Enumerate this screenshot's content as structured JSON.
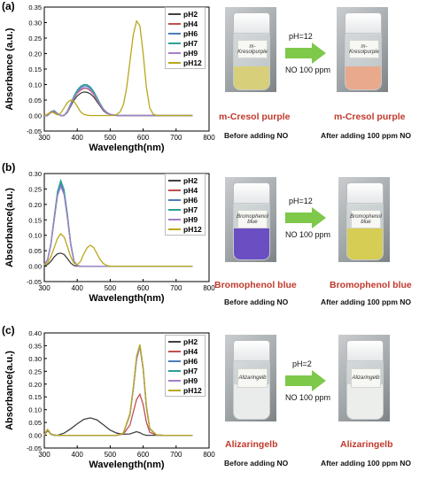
{
  "series_names": [
    "pH2",
    "pH4",
    "pH6",
    "pH7",
    "pH9",
    "pH12"
  ],
  "series_colors": [
    "#404040",
    "#c0504d",
    "#4a7ebb",
    "#2aa198",
    "#a57fc9",
    "#b8a81c"
  ],
  "panels": [
    {
      "label": "(a)",
      "dye": "m-Cresol purple",
      "ph": "pH=12",
      "no": "NO 100 ppm",
      "before_caption": "Before adding NO",
      "after_caption": "After adding  100 ppm NO",
      "before_liquid": "#d8cf7a",
      "after_liquid": "#e9a98c",
      "vial_label": "m-Kresolpurple"
    },
    {
      "label": "(b)",
      "dye": "Bromophenol blue",
      "ph": "pH=12",
      "no": "NO 100 ppm",
      "before_caption": "Before adding NO",
      "after_caption": "After adding  100 ppm NO",
      "before_liquid": "#6a4fc2",
      "after_liquid": "#d6cd55",
      "vial_label": "Bromophenol blue"
    },
    {
      "label": "(c)",
      "dye": "Alizaringelb",
      "ph": "pH=2",
      "no": "NO 100 ppm",
      "before_caption": "Before adding NO",
      "after_caption": "After adding  100 ppm NO",
      "before_liquid": "#e9eceb",
      "after_liquid": "#eceeec",
      "vial_label": "Alizaringelb"
    }
  ],
  "chart_data": [
    {
      "type": "line",
      "xlabel": "Wavelength(nm)",
      "ylabel": "Absorbance (a.u.)",
      "xlim": [
        300,
        800
      ],
      "ylim": [
        -0.05,
        0.35
      ],
      "xticks": [
        300,
        400,
        500,
        600,
        700,
        800
      ],
      "yticks": [
        -0.05,
        0.0,
        0.05,
        0.1,
        0.15,
        0.2,
        0.25,
        0.3,
        0.35
      ],
      "ytick_labels": [
        "-0.05",
        "0.00",
        "0.05",
        "0.10",
        "0.15",
        "0.20",
        "0.25",
        "0.30",
        "0.35"
      ],
      "x": [
        300,
        310,
        320,
        330,
        340,
        350,
        360,
        370,
        380,
        390,
        400,
        410,
        420,
        430,
        440,
        450,
        460,
        470,
        480,
        490,
        500,
        510,
        520,
        530,
        540,
        550,
        560,
        570,
        580,
        590,
        600,
        610,
        620,
        630,
        640,
        650,
        700,
        750
      ],
      "series": [
        {
          "name": "pH2",
          "values": [
            0.0,
            0.0,
            0.01,
            0.012,
            0.005,
            0.0,
            0.0,
            0.01,
            0.03,
            0.05,
            0.063,
            0.072,
            0.076,
            0.075,
            0.07,
            0.06,
            0.045,
            0.03,
            0.015,
            0.007,
            0.003,
            0.001,
            0.0,
            0.0,
            0.0,
            0.0,
            0.0,
            0.0,
            0.0,
            0.0,
            0.0,
            0.0,
            0.0,
            0.0,
            0.0,
            0.0,
            0.0,
            0.0
          ]
        },
        {
          "name": "pH4",
          "values": [
            0.0,
            0.0,
            0.012,
            0.014,
            0.006,
            0.0,
            0.0,
            0.012,
            0.034,
            0.056,
            0.072,
            0.082,
            0.088,
            0.087,
            0.08,
            0.068,
            0.05,
            0.033,
            0.017,
            0.008,
            0.003,
            0.001,
            0.0,
            0.0,
            0.0,
            0.0,
            0.0,
            0.0,
            0.0,
            0.0,
            0.0,
            0.0,
            0.0,
            0.0,
            0.0,
            0.0,
            0.0,
            0.0
          ]
        },
        {
          "name": "pH6",
          "values": [
            0.0,
            0.0,
            0.012,
            0.015,
            0.006,
            0.0,
            0.0,
            0.013,
            0.036,
            0.06,
            0.078,
            0.09,
            0.096,
            0.095,
            0.088,
            0.075,
            0.055,
            0.036,
            0.019,
            0.009,
            0.004,
            0.002,
            0.0,
            0.0,
            0.0,
            0.0,
            0.0,
            0.0,
            0.0,
            0.0,
            0.0,
            0.0,
            0.0,
            0.0,
            0.0,
            0.0,
            0.0,
            0.0
          ]
        },
        {
          "name": "pH7",
          "values": [
            0.0,
            0.0,
            0.013,
            0.016,
            0.007,
            0.0,
            0.0,
            0.014,
            0.038,
            0.063,
            0.082,
            0.094,
            0.1,
            0.099,
            0.092,
            0.078,
            0.058,
            0.038,
            0.02,
            0.01,
            0.004,
            0.002,
            0.0,
            0.0,
            0.0,
            0.0,
            0.0,
            0.0,
            0.0,
            0.0,
            0.0,
            0.0,
            0.0,
            0.0,
            0.0,
            0.0,
            0.0,
            0.0
          ]
        },
        {
          "name": "pH9",
          "values": [
            0.0,
            0.0,
            0.012,
            0.014,
            0.006,
            0.0,
            0.0,
            0.012,
            0.034,
            0.057,
            0.074,
            0.085,
            0.09,
            0.089,
            0.083,
            0.07,
            0.052,
            0.034,
            0.018,
            0.009,
            0.004,
            0.002,
            0.0,
            0.0,
            0.0,
            0.0,
            0.0,
            0.0,
            0.0,
            0.0,
            0.0,
            0.0,
            0.0,
            0.0,
            0.0,
            0.0,
            0.0,
            0.0
          ]
        },
        {
          "name": "pH12",
          "values": [
            0.0,
            0.005,
            0.012,
            0.008,
            0.002,
            0.008,
            0.025,
            0.042,
            0.05,
            0.046,
            0.03,
            0.012,
            0.004,
            0.001,
            0.0,
            0.0,
            0.0,
            0.0,
            0.0,
            0.0,
            0.0,
            0.0,
            0.004,
            0.012,
            0.035,
            0.09,
            0.175,
            0.26,
            0.305,
            0.29,
            0.2,
            0.09,
            0.025,
            0.005,
            0.001,
            0.0,
            0.0,
            0.0
          ]
        }
      ]
    },
    {
      "type": "line",
      "xlabel": "Wavelength(nm)",
      "ylabel": "Absorbance(a.u.)",
      "xlim": [
        300,
        800
      ],
      "ylim": [
        -0.05,
        0.3
      ],
      "xticks": [
        300,
        400,
        500,
        600,
        700,
        800
      ],
      "yticks": [
        -0.05,
        0.0,
        0.05,
        0.1,
        0.15,
        0.2,
        0.25,
        0.3
      ],
      "ytick_labels": [
        "-0.05",
        "0.00",
        "0.05",
        "0.10",
        "0.15",
        "0.20",
        "0.25",
        "0.30"
      ],
      "x": [
        300,
        310,
        320,
        330,
        340,
        350,
        360,
        370,
        380,
        390,
        400,
        410,
        420,
        430,
        440,
        450,
        460,
        470,
        480,
        490,
        500,
        510,
        520,
        530,
        550,
        600,
        650,
        700,
        750
      ],
      "series": [
        {
          "name": "pH2",
          "values": [
            0.003,
            0.005,
            0.015,
            0.03,
            0.04,
            0.042,
            0.038,
            0.025,
            0.01,
            0.002,
            0.0,
            0.0,
            0.0,
            0.0,
            0.0,
            0.0,
            0.0,
            0.0,
            0.0,
            0.0,
            0.0,
            0.0,
            0.0,
            0.0,
            0.0,
            0.0,
            0.0,
            0.0,
            0.0
          ]
        },
        {
          "name": "pH4",
          "values": [
            0.005,
            0.02,
            0.07,
            0.15,
            0.23,
            0.262,
            0.235,
            0.16,
            0.07,
            0.015,
            0.002,
            0.0,
            0.0,
            0.0,
            0.0,
            0.0,
            0.0,
            0.0,
            0.0,
            0.0,
            0.0,
            0.0,
            0.0,
            0.0,
            0.0,
            0.0,
            0.0,
            0.0,
            0.0
          ]
        },
        {
          "name": "pH6",
          "values": [
            0.005,
            0.02,
            0.07,
            0.155,
            0.235,
            0.268,
            0.24,
            0.165,
            0.072,
            0.016,
            0.002,
            0.0,
            0.0,
            0.0,
            0.0,
            0.0,
            0.0,
            0.0,
            0.0,
            0.0,
            0.0,
            0.0,
            0.0,
            0.0,
            0.0,
            0.0,
            0.0,
            0.0,
            0.0
          ]
        },
        {
          "name": "pH7",
          "values": [
            0.005,
            0.021,
            0.072,
            0.16,
            0.242,
            0.278,
            0.248,
            0.17,
            0.075,
            0.017,
            0.002,
            0.0,
            0.0,
            0.0,
            0.0,
            0.0,
            0.0,
            0.0,
            0.0,
            0.0,
            0.0,
            0.0,
            0.0,
            0.0,
            0.0,
            0.0,
            0.0,
            0.0,
            0.0
          ]
        },
        {
          "name": "pH9",
          "values": [
            0.005,
            0.02,
            0.068,
            0.15,
            0.228,
            0.258,
            0.232,
            0.158,
            0.07,
            0.015,
            0.002,
            0.0,
            0.0,
            0.0,
            0.0,
            0.0,
            0.0,
            0.0,
            0.0,
            0.0,
            0.0,
            0.0,
            0.0,
            0.0,
            0.0,
            0.0,
            0.0,
            0.0,
            0.0
          ]
        },
        {
          "name": "pH12",
          "values": [
            0.003,
            0.01,
            0.03,
            0.06,
            0.09,
            0.105,
            0.095,
            0.065,
            0.03,
            0.01,
            0.005,
            0.015,
            0.04,
            0.06,
            0.068,
            0.06,
            0.04,
            0.02,
            0.008,
            0.002,
            0.0,
            0.0,
            0.0,
            0.0,
            0.0,
            0.0,
            0.0,
            0.0,
            0.0
          ]
        }
      ]
    },
    {
      "type": "line",
      "xlabel": "Wavelength(nm)",
      "ylabel": "Absorbance(a.u.)",
      "xlim": [
        300,
        800
      ],
      "ylim": [
        -0.05,
        0.4
      ],
      "xticks": [
        300,
        400,
        500,
        600,
        700,
        800
      ],
      "yticks": [
        -0.05,
        0.0,
        0.05,
        0.1,
        0.15,
        0.2,
        0.25,
        0.3,
        0.35,
        0.4
      ],
      "ytick_labels": [
        "-0.05",
        "0.00",
        "0.05",
        "0.10",
        "0.15",
        "0.20",
        "0.25",
        "0.30",
        "0.35",
        "0.40"
      ],
      "x": [
        300,
        305,
        310,
        315,
        320,
        330,
        340,
        360,
        380,
        400,
        420,
        440,
        460,
        480,
        500,
        520,
        540,
        560,
        570,
        580,
        590,
        600,
        610,
        620,
        640,
        660,
        700,
        750
      ],
      "series": [
        {
          "name": "pH2",
          "values": [
            0.0,
            0.01,
            0.018,
            0.012,
            0.005,
            0.001,
            0.0,
            0.008,
            0.025,
            0.045,
            0.062,
            0.068,
            0.06,
            0.04,
            0.02,
            0.008,
            0.004,
            0.005,
            0.01,
            0.014,
            0.01,
            0.003,
            0.0,
            0.0,
            0.0,
            0.0,
            0.0,
            0.0
          ]
        },
        {
          "name": "pH4",
          "values": [
            0.0,
            0.012,
            0.02,
            0.012,
            0.004,
            0.0,
            0.0,
            0.0,
            0.0,
            0.0,
            0.0,
            0.0,
            0.0,
            0.0,
            0.0,
            0.0,
            0.005,
            0.04,
            0.09,
            0.14,
            0.16,
            0.12,
            0.05,
            0.012,
            0.001,
            0.0,
            0.0,
            0.0
          ]
        },
        {
          "name": "pH6",
          "values": [
            0.0,
            0.014,
            0.022,
            0.014,
            0.004,
            0.0,
            0.0,
            0.0,
            0.0,
            0.0,
            0.0,
            0.0,
            0.0,
            0.0,
            0.0,
            0.0,
            0.008,
            0.08,
            0.18,
            0.3,
            0.35,
            0.26,
            0.11,
            0.025,
            0.002,
            0.0,
            0.0,
            0.0
          ]
        },
        {
          "name": "pH7",
          "values": [
            0.0,
            0.014,
            0.022,
            0.014,
            0.004,
            0.0,
            0.0,
            0.0,
            0.0,
            0.0,
            0.0,
            0.0,
            0.0,
            0.0,
            0.0,
            0.0,
            0.008,
            0.082,
            0.182,
            0.302,
            0.352,
            0.262,
            0.112,
            0.026,
            0.002,
            0.0,
            0.0,
            0.0
          ]
        },
        {
          "name": "pH9",
          "values": [
            0.0,
            0.014,
            0.022,
            0.014,
            0.004,
            0.0,
            0.0,
            0.0,
            0.0,
            0.0,
            0.0,
            0.0,
            0.0,
            0.0,
            0.0,
            0.0,
            0.008,
            0.08,
            0.178,
            0.295,
            0.345,
            0.258,
            0.108,
            0.024,
            0.002,
            0.0,
            0.0,
            0.0
          ]
        },
        {
          "name": "pH12",
          "values": [
            0.0,
            0.014,
            0.022,
            0.014,
            0.004,
            0.0,
            0.0,
            0.0,
            0.0,
            0.0,
            0.0,
            0.0,
            0.0,
            0.0,
            0.0,
            0.0,
            0.009,
            0.085,
            0.185,
            0.31,
            0.355,
            0.265,
            0.115,
            0.027,
            0.002,
            0.0,
            0.0,
            0.0
          ]
        }
      ]
    }
  ]
}
